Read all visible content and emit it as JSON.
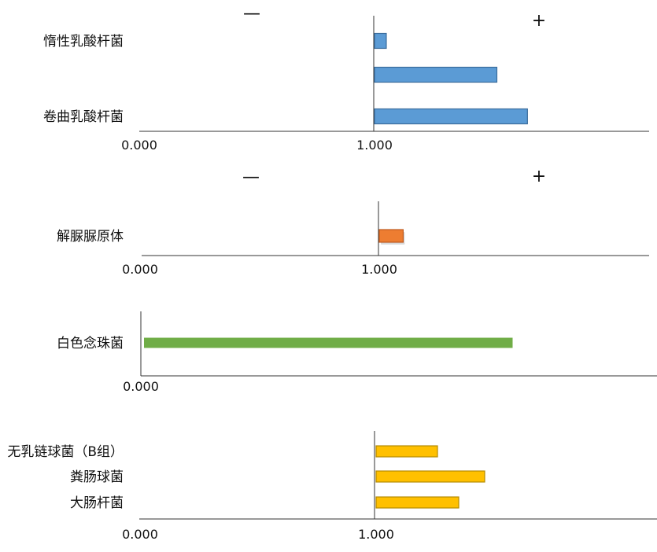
{
  "chart_data": [
    {
      "type": "bar",
      "orientation": "horizontal",
      "signs": {
        "minus": "—",
        "plus": "+"
      },
      "ticks": [
        "0.000",
        "1.000"
      ],
      "color": "#5b9bd5",
      "categories": [
        "惰性乳酸杆菌",
        "",
        "卷曲乳酸杆菌"
      ],
      "values": [
        1.05,
        1.52,
        1.65
      ]
    },
    {
      "type": "bar",
      "orientation": "horizontal",
      "signs": {
        "minus": "—",
        "plus": "+"
      },
      "ticks": [
        "0.000",
        "1.000"
      ],
      "color": "#ed7d31",
      "categories": [
        "解脲脲原体"
      ],
      "values": [
        1.1
      ]
    },
    {
      "type": "bar",
      "orientation": "horizontal",
      "ticks": [
        "0.000"
      ],
      "color": "#70ad47",
      "categories": [
        "白色念珠菌"
      ],
      "values": [
        1.5
      ]
    },
    {
      "type": "bar",
      "orientation": "horizontal",
      "ticks": [
        "0.000",
        "1.000"
      ],
      "color": "#ffc000",
      "categories": [
        "无乳链球菌（B组）",
        "粪肠球菌",
        "大肠杆菌"
      ],
      "values": [
        1.26,
        1.46,
        1.35
      ]
    }
  ]
}
